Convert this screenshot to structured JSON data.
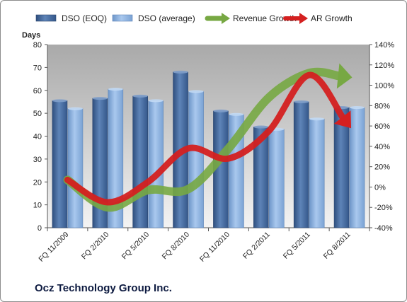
{
  "chart_data": {
    "type": "bar",
    "title": "Ocz Technology Group Inc.",
    "ylabel": "Days",
    "categories": [
      "FQ 11/2009",
      "FQ 2/2010",
      "FQ 5/2010",
      "FQ 8/2010",
      "FQ 11/2010",
      "FQ 2/2011",
      "FQ 5/2011",
      "FQ 8/2011"
    ],
    "ylim": [
      0,
      80
    ],
    "yticks": [
      "0",
      "10",
      "20",
      "30",
      "40",
      "50",
      "60",
      "70",
      "80"
    ],
    "y2lim": [
      -40,
      140
    ],
    "y2ticks": [
      "-40%",
      "-20%",
      "0%",
      "20%",
      "40%",
      "60%",
      "80%",
      "100%",
      "120%",
      "140%"
    ],
    "legend_position": "top",
    "grid": false,
    "series": [
      {
        "name": "DSO (EOQ)",
        "type": "bar",
        "axis": "left",
        "color": "#4a6ea0",
        "values": [
          55.5,
          56.5,
          57.5,
          68,
          51,
          44,
          55,
          52.5
        ]
      },
      {
        "name": "DSO (average)",
        "type": "bar",
        "axis": "left",
        "color": "#8db4e2",
        "values": [
          52,
          60.5,
          55.5,
          59.5,
          49.5,
          43,
          47.5,
          52.5
        ]
      },
      {
        "name": "Revenue Growth",
        "type": "line",
        "axis": "right",
        "color": "#77a843",
        "values": [
          7,
          -20,
          -3,
          -2,
          38,
          88,
          112,
          108
        ]
      },
      {
        "name": "AR Growth",
        "type": "line",
        "axis": "right",
        "color": "#d42020",
        "values": [
          7,
          -15,
          5,
          38,
          28,
          55,
          110,
          60
        ]
      }
    ]
  }
}
